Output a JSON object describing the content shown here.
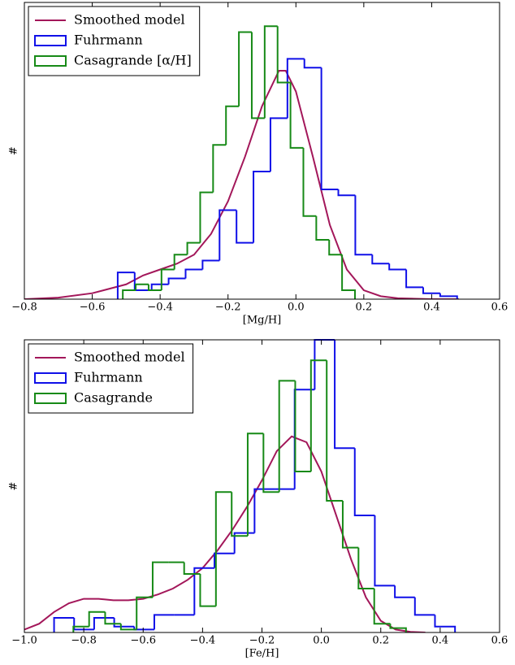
{
  "chart_data": [
    {
      "type": "histogram",
      "xlabel": "[Mg/H]",
      "ylabel": "#",
      "xlim": [
        -0.8,
        0.6
      ],
      "ylim": [
        0,
        100
      ],
      "xticks": [
        {
          "value": -0.8,
          "label": "−0.8"
        },
        {
          "value": -0.6,
          "label": "−0.6"
        },
        {
          "value": -0.4,
          "label": "−0.4"
        },
        {
          "value": -0.2,
          "label": "−0.2"
        },
        {
          "value": 0,
          "label": "0.0"
        },
        0.2,
        0.4,
        0.6
      ],
      "legend": "upper left",
      "series": [
        {
          "name": "Smoothed model",
          "kind": "line",
          "color": "#a3175a",
          "x": [
            -0.8,
            -0.7,
            -0.6,
            -0.5,
            -0.45,
            -0.4,
            -0.35,
            -0.3,
            -0.25,
            -0.2,
            -0.15,
            -0.1,
            -0.05,
            -0.03,
            0,
            0.05,
            0.1,
            0.15,
            0.2,
            0.25,
            0.3,
            0.4,
            0.48
          ],
          "values": [
            0,
            0.5,
            2,
            5,
            8,
            10,
            12,
            15,
            22,
            33,
            48,
            65,
            77,
            77,
            70,
            48,
            25,
            10,
            3,
            1,
            0.3,
            0,
            0
          ]
        },
        {
          "name": "Fuhrmann",
          "kind": "step",
          "color": "#1010e8",
          "bins": [
            -0.525,
            -0.475,
            -0.425,
            -0.375,
            -0.325,
            -0.275,
            -0.225,
            -0.175,
            -0.125,
            -0.075,
            -0.025,
            0.025,
            0.075,
            0.125,
            0.175,
            0.225,
            0.275,
            0.325,
            0.375,
            0.425,
            0.475
          ],
          "values": [
            9,
            3,
            5,
            7,
            10,
            13,
            30,
            19,
            43,
            61,
            81,
            78,
            37,
            35,
            15,
            12,
            10,
            4,
            2,
            1
          ]
        },
        {
          "name": "Casagrande [α/H]",
          "kind": "step",
          "color": "#178a17",
          "bins": [
            -0.51,
            -0.472,
            -0.434,
            -0.396,
            -0.358,
            -0.32,
            -0.282,
            -0.244,
            -0.206,
            -0.168,
            -0.13,
            -0.092,
            -0.054,
            -0.016,
            0.022,
            0.06,
            0.098,
            0.136,
            0.174
          ],
          "values": [
            3,
            5,
            3,
            10,
            15,
            19,
            36,
            52,
            65,
            90,
            61,
            92,
            73,
            51,
            28,
            20,
            15,
            3
          ]
        }
      ]
    },
    {
      "type": "histogram",
      "xlabel": "[Fe/H]",
      "ylabel": "#",
      "xlim": [
        -1.0,
        0.6
      ],
      "ylim": [
        0,
        100
      ],
      "xticks": [
        {
          "value": -1.0,
          "label": "−1.0"
        },
        {
          "value": -0.8,
          "label": "−0.8"
        },
        {
          "value": -0.6,
          "label": "−0.6"
        },
        {
          "value": -0.4,
          "label": "−0.4"
        },
        {
          "value": -0.2,
          "label": "−0.2"
        },
        {
          "value": 0,
          "label": "0.0"
        },
        0.2,
        0.4,
        0.6
      ],
      "legend": "upper left",
      "series": [
        {
          "name": "Smoothed model",
          "kind": "line",
          "color": "#a3175a",
          "x": [
            -1.0,
            -0.95,
            -0.9,
            -0.85,
            -0.8,
            -0.75,
            -0.7,
            -0.65,
            -0.6,
            -0.55,
            -0.5,
            -0.45,
            -0.4,
            -0.35,
            -0.3,
            -0.25,
            -0.2,
            -0.15,
            -0.1,
            -0.05,
            0,
            0.05,
            0.1,
            0.15,
            0.2,
            0.25,
            0.3,
            0.35
          ],
          "values": [
            1,
            3,
            7,
            10,
            11.5,
            11.5,
            11,
            11,
            11.5,
            13,
            15,
            18,
            22,
            28,
            35,
            43,
            52,
            62,
            67,
            65,
            55,
            40,
            25,
            12,
            4,
            1,
            0.2,
            0
          ]
        },
        {
          "name": "Fuhrmann",
          "kind": "step",
          "color": "#1010e8",
          "bins": [
            -0.9,
            -0.8325,
            -0.765,
            -0.6975,
            -0.63,
            -0.5625,
            -0.495,
            -0.4275,
            -0.36,
            -0.2925,
            -0.225,
            -0.1575,
            -0.09,
            -0.0225,
            0.045,
            0.1125,
            0.18,
            0.2475,
            0.315,
            0.3825,
            0.45
          ],
          "values": [
            5,
            1,
            5,
            2,
            1,
            6,
            6,
            22,
            27,
            34,
            49,
            49,
            83,
            100,
            63,
            40,
            16,
            12,
            6,
            2
          ]
        },
        {
          "name": "Casagrande",
          "kind": "step",
          "color": "#178a17",
          "bins": [
            -0.835,
            -0.782,
            -0.728,
            -0.675,
            -0.622,
            -0.568,
            -0.515,
            -0.462,
            -0.408,
            -0.355,
            -0.302,
            -0.248,
            -0.195,
            -0.142,
            -0.088,
            -0.035,
            0.018,
            0.072,
            0.125,
            0.178,
            0.232,
            0.285
          ],
          "values": [
            2,
            7,
            3,
            1,
            12,
            24,
            24,
            20,
            9,
            48,
            33,
            68,
            48,
            86,
            55,
            93,
            45,
            29,
            15,
            3,
            1.5
          ]
        }
      ]
    }
  ]
}
